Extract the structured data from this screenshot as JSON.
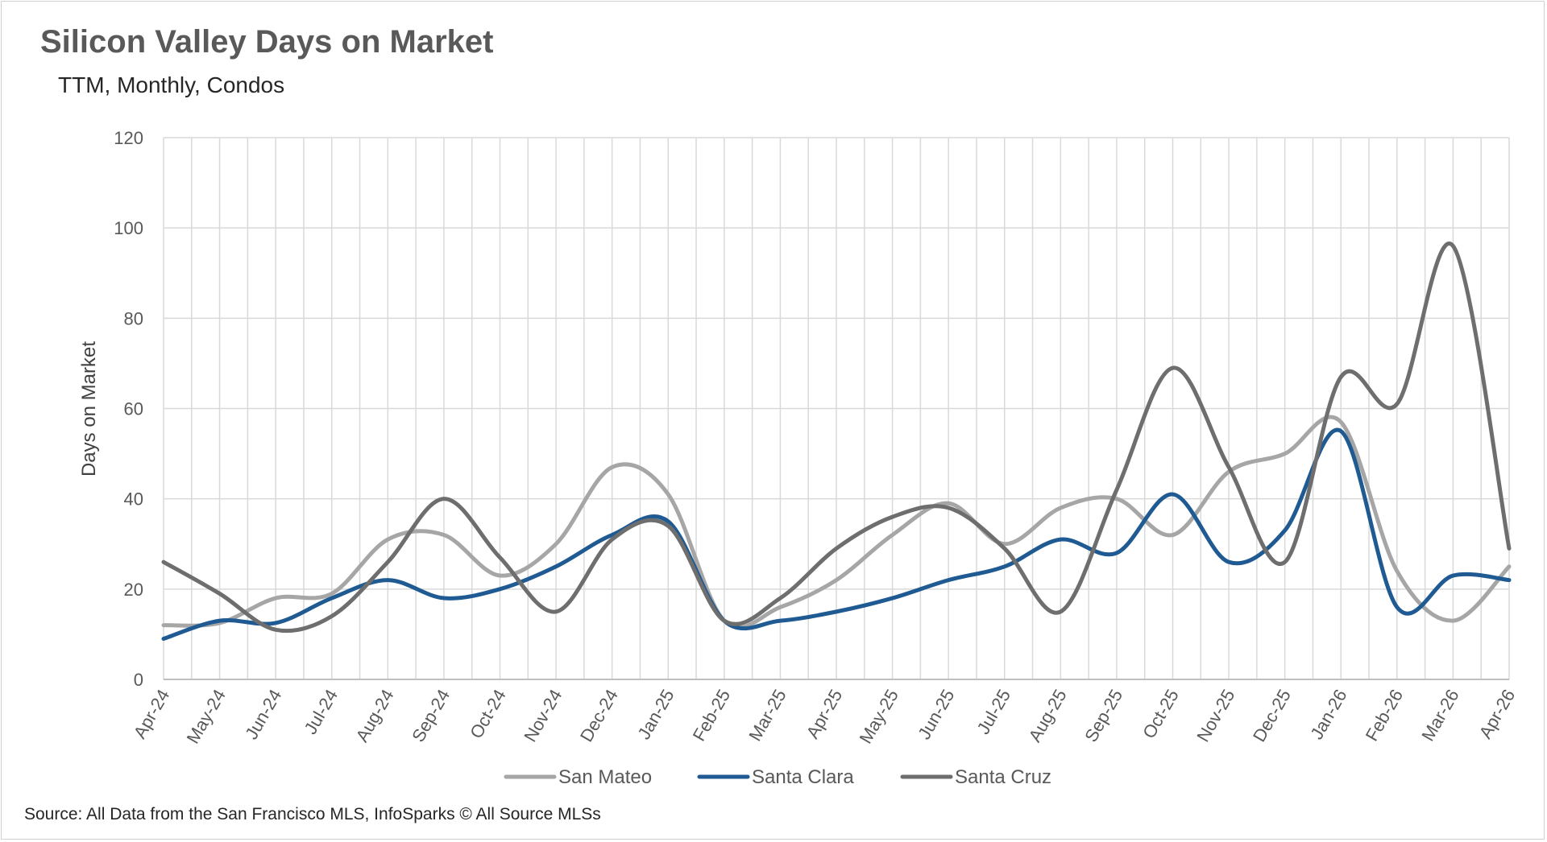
{
  "chart_data": {
    "type": "line",
    "title": "Silicon Valley Days on Market",
    "subtitle": "TTM, Monthly, Condos",
    "xlabel": "",
    "ylabel": "Days on Market",
    "ylim": [
      0,
      120
    ],
    "yticks": [
      "0",
      "20",
      "40",
      "60",
      "80",
      "100",
      "120"
    ],
    "grid": true,
    "legend": "bottom",
    "categories": [
      "Apr-24",
      "May-24",
      "Jun-24",
      "Jul-24",
      "Aug-24",
      "Sep-24",
      "Oct-24",
      "Nov-24",
      "Dec-24",
      "Jan-25",
      "Feb-25",
      "Mar-25",
      "Apr-25",
      "May-25",
      "Jun-25",
      "Jul-25",
      "Aug-25",
      "Sep-25",
      "Oct-25",
      "Nov-25",
      "Dec-25",
      "Jan-26",
      "Feb-26",
      "Mar-26",
      "Apr-26"
    ],
    "series": [
      {
        "name": "San Mateo",
        "color": "#a6a6a6",
        "values": [
          12,
          12.5,
          18,
          19,
          31,
          32,
          23,
          30,
          47,
          41,
          13,
          16,
          22,
          32,
          39,
          30,
          38,
          40,
          32,
          46,
          50,
          57,
          24,
          13,
          25
        ]
      },
      {
        "name": "Santa Clara",
        "color": "#1f5b92",
        "values": [
          9,
          13,
          12.5,
          18,
          22,
          18,
          20,
          25,
          32,
          35,
          13,
          13,
          15,
          18,
          22,
          25,
          31,
          28,
          41,
          26,
          33,
          55,
          16,
          23,
          22
        ]
      },
      {
        "name": "Santa Cruz",
        "color": "#6e6e6e",
        "values": [
          26,
          19,
          11,
          14,
          26,
          40,
          27,
          15,
          31,
          34,
          13,
          18,
          29,
          36,
          38,
          29,
          15,
          42,
          69,
          47,
          26,
          67,
          61,
          96,
          29
        ]
      }
    ],
    "source": "Source: All Data from the San Francisco MLS, InfoSparks © All Source MLSs"
  }
}
